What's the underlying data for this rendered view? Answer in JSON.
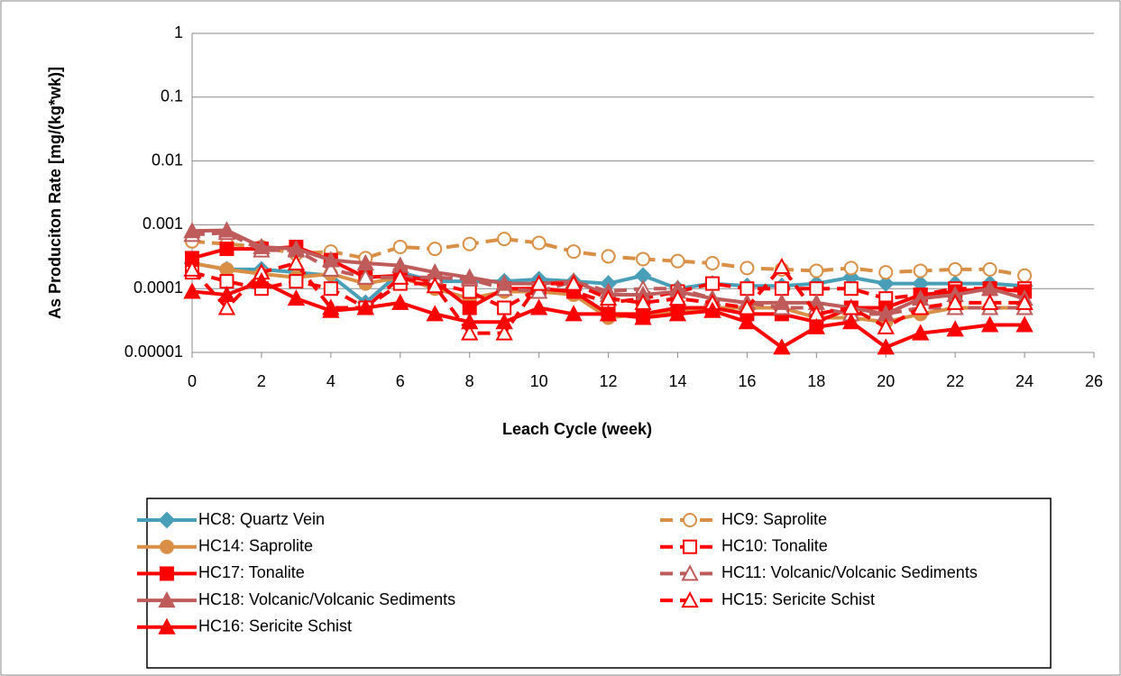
{
  "chart_data": {
    "type": "line",
    "ylabel": "As Produciton Rate [mg/(kg*wk)]",
    "xlabel": "Leach Cycle (week)",
    "x": [
      0,
      1,
      2,
      3,
      4,
      5,
      6,
      7,
      8,
      9,
      10,
      11,
      12,
      13,
      14,
      15,
      16,
      17,
      18,
      19,
      20,
      21,
      22,
      23,
      24
    ],
    "xlim": [
      0,
      26
    ],
    "xticks": [
      0,
      2,
      4,
      6,
      8,
      10,
      12,
      14,
      16,
      18,
      20,
      22,
      24,
      26
    ],
    "ylim": [
      1e-05,
      1
    ],
    "yticks": [
      1,
      0.1,
      0.01,
      0.001,
      0.0001,
      1e-05
    ],
    "log_y": true,
    "grid": true,
    "series": [
      {
        "name": "HC8: Quartz Vein",
        "color": "#4a9fb8",
        "dashed": false,
        "marker": "diamond",
        "filled": true,
        "values": [
          0.00025,
          0.0002,
          0.0002,
          0.00018,
          0.00016,
          6e-05,
          0.00018,
          0.00013,
          0.00013,
          0.00013,
          0.00014,
          0.00013,
          0.00012,
          0.00016,
          0.0001,
          0.00012,
          0.00011,
          0.00011,
          0.00012,
          0.00015,
          0.00012,
          0.00012,
          0.00012,
          0.00012,
          0.00011
        ]
      },
      {
        "name": "HC9: Saprolite",
        "color": "#d98f45",
        "dashed": true,
        "marker": "circle",
        "filled": false,
        "values": [
          0.00055,
          0.0005,
          0.00045,
          0.00035,
          0.00038,
          0.0003,
          0.00045,
          0.00042,
          0.0005,
          0.0006,
          0.00052,
          0.00038,
          0.00032,
          0.00029,
          0.00027,
          0.00025,
          0.00021,
          0.0002,
          0.00019,
          0.00021,
          0.00018,
          0.00019,
          0.0002,
          0.0002,
          0.00016
        ]
      },
      {
        "name": "HC14: Saprolite",
        "color": "#d98f45",
        "dashed": false,
        "marker": "circle",
        "filled": true,
        "values": [
          0.00025,
          0.0002,
          0.00017,
          0.00015,
          0.00017,
          0.00012,
          0.00015,
          0.0001,
          7e-05,
          9e-05,
          9e-05,
          8e-05,
          3.5e-05,
          4e-05,
          4.5e-05,
          5e-05,
          5e-05,
          5e-05,
          3.5e-05,
          3.5e-05,
          3e-05,
          4e-05,
          5e-05,
          5e-05,
          5e-05
        ]
      },
      {
        "name": "HC10: Tonalite",
        "color": "#ff0000",
        "dashed": true,
        "marker": "square",
        "filled": false,
        "values": [
          0.00018,
          0.00013,
          0.0001,
          0.00013,
          0.0001,
          5e-05,
          0.00012,
          0.00012,
          9e-05,
          5e-05,
          0.0001,
          9e-05,
          6e-05,
          7e-05,
          9e-05,
          0.00012,
          0.0001,
          0.0001,
          0.0001,
          0.0001,
          7e-05,
          8e-05,
          0.0001,
          0.0001,
          0.0001
        ]
      },
      {
        "name": "HC17: Tonalite",
        "color": "#ff0000",
        "dashed": false,
        "marker": "square",
        "filled": true,
        "values": [
          0.0003,
          0.00042,
          0.00042,
          0.00045,
          0.00028,
          0.00015,
          0.00016,
          0.00013,
          5e-05,
          0.0001,
          0.0001,
          9e-05,
          4e-05,
          4e-05,
          5e-05,
          5e-05,
          4e-05,
          4e-05,
          3e-05,
          5e-05,
          5e-05,
          8e-05,
          9e-05,
          0.0001,
          9e-05
        ]
      },
      {
        "name": "HC11: Volcanic/Volcanic Sediments",
        "color": "#bf5b5b",
        "dashed": true,
        "marker": "triangle",
        "filled": false,
        "values": [
          0.0007,
          0.00075,
          0.0004,
          0.0004,
          0.0002,
          0.00015,
          0.00015,
          0.00015,
          0.00014,
          0.0001,
          9e-05,
          0.00013,
          9e-05,
          0.0001,
          0.0001,
          7e-05,
          6e-05,
          5e-05,
          5e-05,
          4e-05,
          4e-05,
          5e-05,
          5e-05,
          5e-05,
          5e-05
        ]
      },
      {
        "name": "HC18: Volcanic/Volcanic Sediments",
        "color": "#bf5b5b",
        "dashed": false,
        "marker": "triangle",
        "filled": true,
        "values": [
          0.0008,
          0.00082,
          0.00045,
          0.00042,
          0.00028,
          0.00025,
          0.00023,
          0.00018,
          0.00015,
          0.00012,
          0.00012,
          0.00013,
          8e-05,
          8e-05,
          9e-05,
          7e-05,
          6e-05,
          6e-05,
          6e-05,
          5e-05,
          4e-05,
          7e-05,
          8e-05,
          0.0001,
          7e-05
        ]
      },
      {
        "name": "HC15: Sericite Schist",
        "color": "#ff0000",
        "dashed": true,
        "marker": "triangle",
        "filled": false,
        "values": [
          0.0002,
          5e-05,
          0.00018,
          0.00025,
          5e-05,
          5e-05,
          0.00015,
          0.00011,
          2e-05,
          2e-05,
          0.00012,
          0.00012,
          7e-05,
          6e-05,
          7e-05,
          6e-05,
          5e-05,
          0.00022,
          4e-05,
          5e-05,
          2.5e-05,
          5e-05,
          6e-05,
          6e-05,
          6e-05
        ]
      },
      {
        "name": "HC16: Sericite Schist",
        "color": "#ff0000",
        "dashed": false,
        "marker": "triangle",
        "filled": true,
        "values": [
          9e-05,
          8e-05,
          0.00013,
          7e-05,
          4.5e-05,
          5e-05,
          6e-05,
          4e-05,
          3e-05,
          3e-05,
          5e-05,
          4e-05,
          4e-05,
          3.5e-05,
          4e-05,
          4.5e-05,
          3e-05,
          1.2e-05,
          2.5e-05,
          3e-05,
          1.2e-05,
          2e-05,
          2.3e-05,
          2.7e-05,
          2.7e-05
        ]
      }
    ]
  }
}
